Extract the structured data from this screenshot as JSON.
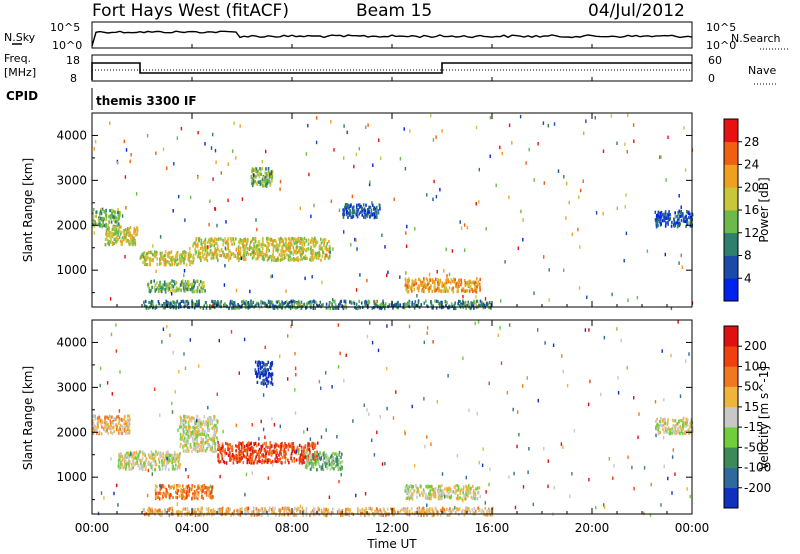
{
  "header": {
    "station": "Fort Hays West (fitACF)",
    "beam": "Beam 15",
    "date": "04/Jul/2012"
  },
  "side_labels": {
    "nsky": "N.Sky",
    "nsearch": "N.Search",
    "freq_line1": "Freq.",
    "freq_line2": "[MHz]",
    "nave": "Nave",
    "cpid": "CPID",
    "cpid_value": "themis 3300 IF"
  },
  "noise_axis": {
    "left_top": "10^5",
    "left_bottom": "10^0",
    "right_top": "10^5",
    "right_bottom": "10^0"
  },
  "freq_axis": {
    "left_ticks": [
      "18",
      "8"
    ],
    "right_ticks": [
      "60",
      "0"
    ]
  },
  "time_axis": {
    "xlabel": "Time UT",
    "ticks": [
      "00:00",
      "04:00",
      "08:00",
      "12:00",
      "16:00",
      "20:00",
      "00:00"
    ]
  },
  "chart_data": [
    {
      "type": "heatmap",
      "title": "",
      "xlabel": "Time UT",
      "ylabel": "Slant Range [km]",
      "x_range_hours": [
        0,
        24
      ],
      "ylim": [
        180,
        4500
      ],
      "yticks": [
        1000,
        2000,
        3000,
        4000
      ],
      "colorbar": {
        "label": "Power [dB]",
        "ticks": [
          "4",
          "8",
          "12",
          "16",
          "20",
          "24",
          "28"
        ],
        "colors": [
          "#0022ee",
          "#1a4ba8",
          "#2f7f6e",
          "#6cba4a",
          "#c9c63a",
          "#f0a020",
          "#f06010",
          "#e81010"
        ]
      },
      "regions": [
        {
          "t": [
            0.0,
            1.1
          ],
          "r": [
            2000,
            2400
          ],
          "level": 3
        },
        {
          "t": [
            0.5,
            1.8
          ],
          "r": [
            1600,
            2000
          ],
          "level": 4
        },
        {
          "t": [
            1.9,
            4.0
          ],
          "r": [
            1150,
            1450
          ],
          "level": 4
        },
        {
          "t": [
            4.0,
            9.5
          ],
          "r": [
            1250,
            1750
          ],
          "level": 4
        },
        {
          "t": [
            6.3,
            7.2
          ],
          "r": [
            2900,
            3300
          ],
          "level": 3
        },
        {
          "t": [
            2.2,
            4.5
          ],
          "r": [
            550,
            800
          ],
          "level": 3
        },
        {
          "t": [
            12.5,
            15.5
          ],
          "r": [
            550,
            850
          ],
          "level": 5
        },
        {
          "t": [
            10.0,
            11.5
          ],
          "r": [
            2200,
            2500
          ],
          "level": 1
        },
        {
          "t": [
            22.5,
            24.0
          ],
          "r": [
            2000,
            2350
          ],
          "level": 1
        },
        {
          "t": [
            2.0,
            16.0
          ],
          "r": [
            180,
            350
          ],
          "level": 2
        }
      ]
    },
    {
      "type": "heatmap",
      "title": "",
      "xlabel": "Time UT",
      "ylabel": "Slant Range [km]",
      "x_range_hours": [
        0,
        24
      ],
      "ylim": [
        180,
        4500
      ],
      "yticks": [
        1000,
        2000,
        3000,
        4000
      ],
      "colorbar": {
        "label": "Velocity [m s^-1]",
        "ticks": [
          "200",
          "100",
          "50",
          "15",
          "-15",
          "-50",
          "-100",
          "-200"
        ],
        "colors": [
          "#1030c0",
          "#2f6a9a",
          "#3b8a5a",
          "#6fce3a",
          "#c8c8c8",
          "#f0b43c",
          "#f07820",
          "#f04010",
          "#e01010"
        ]
      },
      "regions": [
        {
          "t": [
            0.0,
            1.5
          ],
          "r": [
            2000,
            2400
          ],
          "level": 5
        },
        {
          "t": [
            1.0,
            3.5
          ],
          "r": [
            1200,
            1600
          ],
          "level": 4
        },
        {
          "t": [
            3.5,
            5.0
          ],
          "r": [
            1600,
            2400
          ],
          "level": 4
        },
        {
          "t": [
            5.0,
            9.0
          ],
          "r": [
            1350,
            1800
          ],
          "level": 7
        },
        {
          "t": [
            8.5,
            10.0
          ],
          "r": [
            1200,
            1600
          ],
          "level": 3
        },
        {
          "t": [
            6.5,
            7.2
          ],
          "r": [
            3100,
            3600
          ],
          "level": 0
        },
        {
          "t": [
            2.5,
            4.8
          ],
          "r": [
            550,
            850
          ],
          "level": 6
        },
        {
          "t": [
            12.5,
            15.5
          ],
          "r": [
            550,
            850
          ],
          "level": 4
        },
        {
          "t": [
            22.5,
            24.0
          ],
          "r": [
            2000,
            2350
          ],
          "level": 4
        },
        {
          "t": [
            2.0,
            16.0
          ],
          "r": [
            180,
            350
          ],
          "level": 5
        }
      ]
    }
  ]
}
